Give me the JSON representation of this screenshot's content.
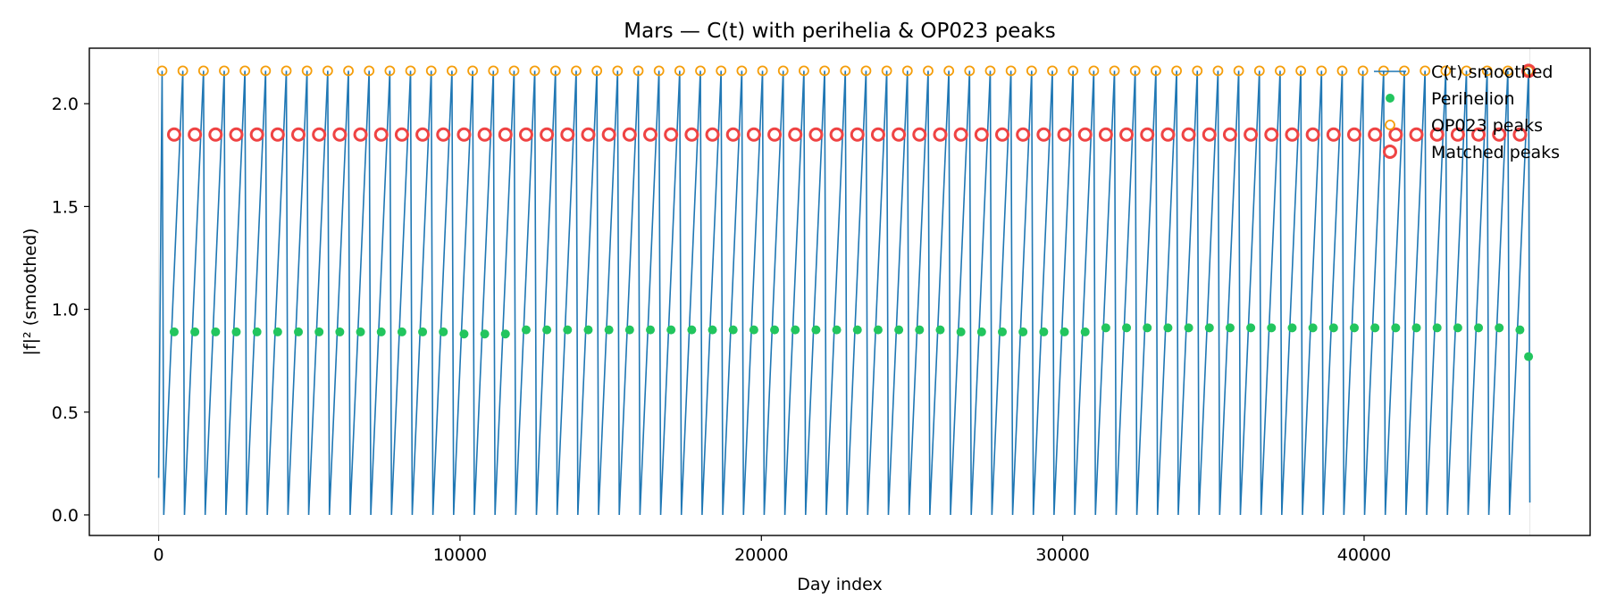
{
  "chart_data": {
    "type": "line",
    "title": "Mars — C(t) with perihelia & OP023 peaks",
    "xlabel": "Day index",
    "ylabel": "|f|² (smoothed)",
    "xlim": [
      -2300,
      47500
    ],
    "ylim": [
      -0.1,
      2.27
    ],
    "xticks": [
      0,
      10000,
      20000,
      30000,
      40000
    ],
    "xtick_labels": [
      "0",
      "10000",
      "20000",
      "30000",
      "40000"
    ],
    "yticks": [
      0.0,
      0.5,
      1.0,
      1.5,
      2.0
    ],
    "ytick_labels": [
      "0.0",
      "0.5",
      "1.0",
      "1.5",
      "2.0"
    ],
    "grid": false,
    "legend_position": "top-right",
    "colors": {
      "line": "#1f77b4",
      "perihelion": "#22c55e",
      "op023": "#f59e0b",
      "matched": "#ef4444"
    },
    "series": [
      {
        "name": "C(t) smoothed",
        "kind": "sawtooth-line",
        "start_x": 0,
        "start_y": 0.18,
        "end_x": 45500,
        "end_y": 0.06,
        "period_days": 687,
        "peak_value": 2.16,
        "trough_value": 0.0,
        "first_trough_day": 170
      },
      {
        "name": "Perihelion",
        "kind": "points",
        "x": [
          515,
          1202,
          1889,
          2576,
          3263,
          3950,
          4637,
          5324,
          6011,
          6698,
          7385,
          8072,
          8759,
          9446,
          10133,
          10820,
          11507,
          12194,
          12881,
          13568,
          14255,
          14942,
          15629,
          16316,
          17003,
          17690,
          18377,
          19064,
          19751,
          20438,
          21125,
          21812,
          22499,
          23186,
          23873,
          24560,
          25247,
          25934,
          26621,
          27308,
          27995,
          28682,
          29369,
          30056,
          30743,
          31430,
          32117,
          32804,
          33491,
          34178,
          34865,
          35552,
          36239,
          36926,
          37613,
          38300,
          38987,
          39674,
          40361,
          41048,
          41735,
          42422,
          43109,
          43796,
          44483,
          45170
        ],
        "y": [
          0.89,
          0.89,
          0.89,
          0.89,
          0.89,
          0.89,
          0.89,
          0.89,
          0.89,
          0.89,
          0.89,
          0.89,
          0.89,
          0.89,
          0.88,
          0.88,
          0.88,
          0.9,
          0.9,
          0.9,
          0.9,
          0.9,
          0.9,
          0.9,
          0.9,
          0.9,
          0.9,
          0.9,
          0.9,
          0.9,
          0.9,
          0.9,
          0.9,
          0.9,
          0.9,
          0.9,
          0.9,
          0.9,
          0.89,
          0.89,
          0.89,
          0.89,
          0.89,
          0.89,
          0.89,
          0.91,
          0.91,
          0.91,
          0.91,
          0.91,
          0.91,
          0.91,
          0.91,
          0.91,
          0.91,
          0.91,
          0.91,
          0.91,
          0.91,
          0.91,
          0.91,
          0.91,
          0.91,
          0.91,
          0.91,
          0.9
        ]
      },
      {
        "name": "OP023 peaks",
        "kind": "points",
        "x": [
          115,
          802,
          1489,
          2176,
          2863,
          3550,
          4237,
          4924,
          5611,
          6298,
          6985,
          7672,
          8359,
          9046,
          9733,
          10420,
          11107,
          11794,
          12481,
          13168,
          13855,
          14542,
          15229,
          15916,
          16603,
          17290,
          17977,
          18664,
          19351,
          20038,
          20725,
          21412,
          22099,
          22786,
          23473,
          24160,
          24847,
          25534,
          26221,
          26908,
          27595,
          28282,
          28969,
          29656,
          30343,
          31030,
          31717,
          32404,
          33091,
          33778,
          34465,
          35152,
          35839,
          36526,
          37213,
          37900,
          38587,
          39274,
          39961,
          40648,
          41335,
          42022,
          42709,
          43396,
          44083,
          44770,
          45457
        ],
        "y": [
          2.16,
          2.16,
          2.16,
          2.16,
          2.16,
          2.16,
          2.16,
          2.16,
          2.16,
          2.16,
          2.16,
          2.16,
          2.16,
          2.16,
          2.16,
          2.16,
          2.16,
          2.16,
          2.16,
          2.16,
          2.16,
          2.16,
          2.16,
          2.16,
          2.16,
          2.16,
          2.16,
          2.16,
          2.16,
          2.16,
          2.16,
          2.16,
          2.16,
          2.16,
          2.16,
          2.16,
          2.16,
          2.16,
          2.16,
          2.16,
          2.16,
          2.16,
          2.16,
          2.16,
          2.16,
          2.16,
          2.16,
          2.16,
          2.16,
          2.16,
          2.16,
          2.16,
          2.16,
          2.16,
          2.16,
          2.16,
          2.16,
          2.16,
          2.16,
          2.16,
          2.16,
          2.16,
          2.16,
          2.16,
          2.16,
          2.16,
          2.16
        ]
      },
      {
        "name": "Matched peaks",
        "kind": "points",
        "x": [
          515,
          1202,
          1889,
          2576,
          3263,
          3950,
          4637,
          5324,
          6011,
          6698,
          7385,
          8072,
          8759,
          9446,
          10133,
          10820,
          11507,
          12194,
          12881,
          13568,
          14255,
          14942,
          15629,
          16316,
          17003,
          17690,
          18377,
          19064,
          19751,
          20438,
          21125,
          21812,
          22499,
          23186,
          23873,
          24560,
          25247,
          25934,
          26621,
          27308,
          27995,
          28682,
          29369,
          30056,
          30743,
          31430,
          32117,
          32804,
          33491,
          34178,
          34865,
          35552,
          36239,
          36926,
          37613,
          38300,
          38987,
          39674,
          40361,
          41048,
          41735,
          42422,
          43109,
          43796,
          44483,
          45170,
          45457
        ],
        "y": [
          1.85,
          1.85,
          1.85,
          1.85,
          1.85,
          1.85,
          1.85,
          1.85,
          1.85,
          1.85,
          1.85,
          1.85,
          1.85,
          1.85,
          1.85,
          1.85,
          1.85,
          1.85,
          1.85,
          1.85,
          1.85,
          1.85,
          1.85,
          1.85,
          1.85,
          1.85,
          1.85,
          1.85,
          1.85,
          1.85,
          1.85,
          1.85,
          1.85,
          1.85,
          1.85,
          1.85,
          1.85,
          1.85,
          1.85,
          1.85,
          1.85,
          1.85,
          1.85,
          1.85,
          1.85,
          1.85,
          1.85,
          1.85,
          1.85,
          1.85,
          1.85,
          1.85,
          1.85,
          1.85,
          1.85,
          1.85,
          1.85,
          1.85,
          1.85,
          1.85,
          1.85,
          1.85,
          1.85,
          1.85,
          1.85,
          1.85,
          2.16
        ]
      }
    ],
    "extra_points": {
      "perihelion_last": {
        "x": 45457,
        "y": 0.77
      }
    },
    "legend": [
      {
        "label": "C(t) smoothed",
        "marker": "line"
      },
      {
        "label": "Perihelion",
        "marker": "filled-dot"
      },
      {
        "label": "OP023 peaks",
        "marker": "hollow-circle"
      },
      {
        "label": "Matched peaks",
        "marker": "thick-hollow-circle"
      }
    ]
  }
}
